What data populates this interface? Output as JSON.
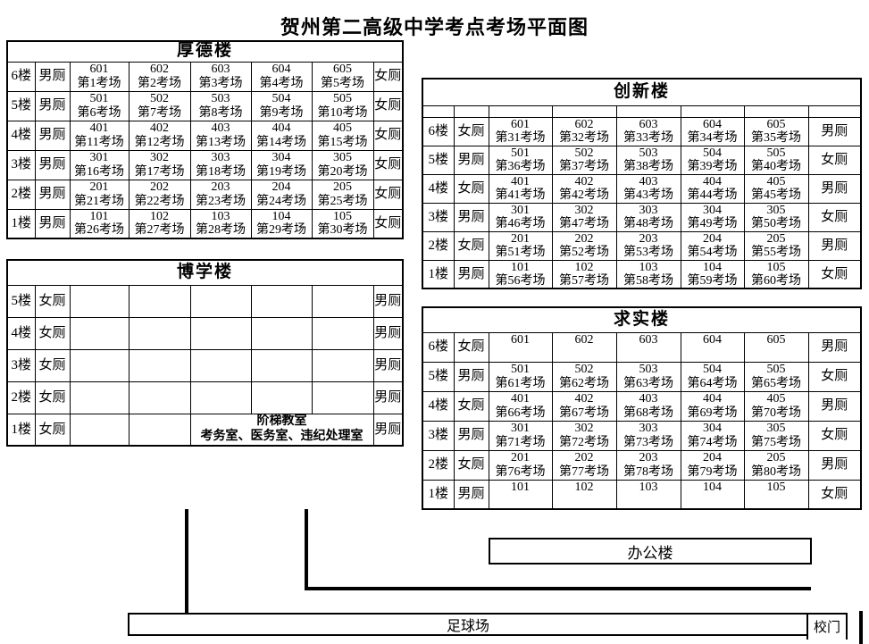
{
  "title": "贺州第二高级中学考点考场平面图",
  "office_label": "办公楼",
  "football_label": "足球场",
  "gate_label": "校门",
  "buildings": [
    {
      "id": "houde",
      "name": "厚德楼",
      "floors": [
        {
          "floor": "6楼",
          "left_toilet": "男厕",
          "rooms": [
            {
              "number": "601",
              "label": "第1考场"
            },
            {
              "number": "602",
              "label": "第2考场"
            },
            {
              "number": "603",
              "label": "第3考场"
            },
            {
              "number": "604",
              "label": "第4考场"
            },
            {
              "number": "605",
              "label": "第5考场"
            }
          ],
          "right_toilet": "女厕"
        },
        {
          "floor": "5楼",
          "left_toilet": "男厕",
          "rooms": [
            {
              "number": "501",
              "label": "第6考场"
            },
            {
              "number": "502",
              "label": "第7考场"
            },
            {
              "number": "503",
              "label": "第8考场"
            },
            {
              "number": "504",
              "label": "第9考场"
            },
            {
              "number": "505",
              "label": "第10考场"
            }
          ],
          "right_toilet": "女厕"
        },
        {
          "floor": "4楼",
          "left_toilet": "男厕",
          "rooms": [
            {
              "number": "401",
              "label": "第11考场"
            },
            {
              "number": "402",
              "label": "第12考场"
            },
            {
              "number": "403",
              "label": "第13考场"
            },
            {
              "number": "404",
              "label": "第14考场"
            },
            {
              "number": "405",
              "label": "第15考场"
            }
          ],
          "right_toilet": "女厕"
        },
        {
          "floor": "3楼",
          "left_toilet": "男厕",
          "rooms": [
            {
              "number": "301",
              "label": "第16考场"
            },
            {
              "number": "302",
              "label": "第17考场"
            },
            {
              "number": "303",
              "label": "第18考场"
            },
            {
              "number": "304",
              "label": "第19考场"
            },
            {
              "number": "305",
              "label": "第20考场"
            }
          ],
          "right_toilet": "女厕"
        },
        {
          "floor": "2楼",
          "left_toilet": "男厕",
          "rooms": [
            {
              "number": "201",
              "label": "第21考场"
            },
            {
              "number": "202",
              "label": "第22考场"
            },
            {
              "number": "203",
              "label": "第23考场"
            },
            {
              "number": "204",
              "label": "第24考场"
            },
            {
              "number": "205",
              "label": "第25考场"
            }
          ],
          "right_toilet": "女厕"
        },
        {
          "floor": "1楼",
          "left_toilet": "男厕",
          "rooms": [
            {
              "number": "101",
              "label": "第26考场"
            },
            {
              "number": "102",
              "label": "第27考场"
            },
            {
              "number": "103",
              "label": "第28考场"
            },
            {
              "number": "104",
              "label": "第29考场"
            },
            {
              "number": "105",
              "label": "第30考场"
            }
          ],
          "right_toilet": "女厕"
        }
      ]
    },
    {
      "id": "boxue",
      "name": "博学楼",
      "floors": [
        {
          "floor": "5楼",
          "left_toilet": "女厕",
          "rooms": [
            {},
            {},
            {},
            {},
            {}
          ],
          "right_toilet": "男厕"
        },
        {
          "floor": "4楼",
          "left_toilet": "女厕",
          "rooms": [
            {},
            {},
            {},
            {},
            {}
          ],
          "right_toilet": "男厕"
        },
        {
          "floor": "3楼",
          "left_toilet": "女厕",
          "rooms": [
            {},
            {},
            {},
            {},
            {}
          ],
          "right_toilet": "男厕"
        },
        {
          "floor": "2楼",
          "left_toilet": "女厕",
          "rooms": [
            {},
            {},
            {},
            {},
            {}
          ],
          "right_toilet": "男厕"
        },
        {
          "floor": "1楼",
          "left_toilet": "女厕",
          "rooms": [
            {},
            {},
            {
              "colspan": 3,
              "lines": [
                "阶梯教室",
                "考务室、医务室、违纪处理室"
              ]
            }
          ],
          "right_toilet": "男厕"
        }
      ]
    },
    {
      "id": "chuangxin",
      "name": "创新楼",
      "spacer_row": true,
      "floors": [
        {
          "floor": "6楼",
          "left_toilet": "女厕",
          "rooms": [
            {
              "number": "601",
              "label": "第31考场"
            },
            {
              "number": "602",
              "label": "第32考场"
            },
            {
              "number": "603",
              "label": "第33考场"
            },
            {
              "number": "604",
              "label": "第34考场"
            },
            {
              "number": "605",
              "label": "第35考场"
            }
          ],
          "right_toilet": "男厕"
        },
        {
          "floor": "5楼",
          "left_toilet": "男厕",
          "rooms": [
            {
              "number": "501",
              "label": "第36考场"
            },
            {
              "number": "502",
              "label": "第37考场"
            },
            {
              "number": "503",
              "label": "第38考场"
            },
            {
              "number": "504",
              "label": "第39考场"
            },
            {
              "number": "505",
              "label": "第40考场"
            }
          ],
          "right_toilet": "女厕"
        },
        {
          "floor": "4楼",
          "left_toilet": "女厕",
          "rooms": [
            {
              "number": "401",
              "label": "第41考场"
            },
            {
              "number": "402",
              "label": "第42考场"
            },
            {
              "number": "403",
              "label": "第43考场"
            },
            {
              "number": "404",
              "label": "第44考场"
            },
            {
              "number": "405",
              "label": "第45考场"
            }
          ],
          "right_toilet": "男厕"
        },
        {
          "floor": "3楼",
          "left_toilet": "男厕",
          "rooms": [
            {
              "number": "301",
              "label": "第46考场"
            },
            {
              "number": "302",
              "label": "第47考场"
            },
            {
              "number": "303",
              "label": "第48考场"
            },
            {
              "number": "304",
              "label": "第49考场"
            },
            {
              "number": "305",
              "label": "第50考场"
            }
          ],
          "right_toilet": "女厕"
        },
        {
          "floor": "2楼",
          "left_toilet": "女厕",
          "rooms": [
            {
              "number": "201",
              "label": "第51考场"
            },
            {
              "number": "202",
              "label": "第52考场"
            },
            {
              "number": "203",
              "label": "第53考场"
            },
            {
              "number": "204",
              "label": "第54考场"
            },
            {
              "number": "205",
              "label": "第55考场"
            }
          ],
          "right_toilet": "男厕"
        },
        {
          "floor": "1楼",
          "left_toilet": "男厕",
          "rooms": [
            {
              "number": "101",
              "label": "第56考场"
            },
            {
              "number": "102",
              "label": "第57考场"
            },
            {
              "number": "103",
              "label": "第58考场"
            },
            {
              "number": "104",
              "label": "第59考场"
            },
            {
              "number": "105",
              "label": "第60考场"
            }
          ],
          "right_toilet": "女厕"
        }
      ]
    },
    {
      "id": "qiushi",
      "name": "求实楼",
      "floors": [
        {
          "floor": "6楼",
          "left_toilet": "女厕",
          "rooms": [
            {
              "number": "601"
            },
            {
              "number": "602"
            },
            {
              "number": "603"
            },
            {
              "number": "604"
            },
            {
              "number": "605"
            }
          ],
          "right_toilet": "男厕"
        },
        {
          "floor": "5楼",
          "left_toilet": "男厕",
          "rooms": [
            {
              "number": "501",
              "label": "第61考场"
            },
            {
              "number": "502",
              "label": "第62考场"
            },
            {
              "number": "503",
              "label": "第63考场"
            },
            {
              "number": "504",
              "label": "第64考场"
            },
            {
              "number": "505",
              "label": "第65考场"
            }
          ],
          "right_toilet": "女厕"
        },
        {
          "floor": "4楼",
          "left_toilet": "女厕",
          "rooms": [
            {
              "number": "401",
              "label": "第66考场"
            },
            {
              "number": "402",
              "label": "第67考场"
            },
            {
              "number": "403",
              "label": "第68考场"
            },
            {
              "number": "404",
              "label": "第69考场"
            },
            {
              "number": "405",
              "label": "第70考场"
            }
          ],
          "right_toilet": "男厕"
        },
        {
          "floor": "3楼",
          "left_toilet": "男厕",
          "rooms": [
            {
              "number": "301",
              "label": "第71考场"
            },
            {
              "number": "302",
              "label": "第72考场"
            },
            {
              "number": "303",
              "label": "第73考场"
            },
            {
              "number": "304",
              "label": "第74考场"
            },
            {
              "number": "305",
              "label": "第75考场"
            }
          ],
          "right_toilet": "女厕"
        },
        {
          "floor": "2楼",
          "left_toilet": "女厕",
          "rooms": [
            {
              "number": "201",
              "label": "第76考场"
            },
            {
              "number": "202",
              "label": "第77考场"
            },
            {
              "number": "203",
              "label": "第78考场"
            },
            {
              "number": "204",
              "label": "第79考场"
            },
            {
              "number": "205",
              "label": "第80考场"
            }
          ],
          "right_toilet": "男厕"
        },
        {
          "floor": "1楼",
          "left_toilet": "男厕",
          "rooms": [
            {
              "number": "101"
            },
            {
              "number": "102"
            },
            {
              "number": "103"
            },
            {
              "number": "104"
            },
            {
              "number": "105"
            }
          ],
          "right_toilet": "女厕"
        }
      ]
    }
  ]
}
